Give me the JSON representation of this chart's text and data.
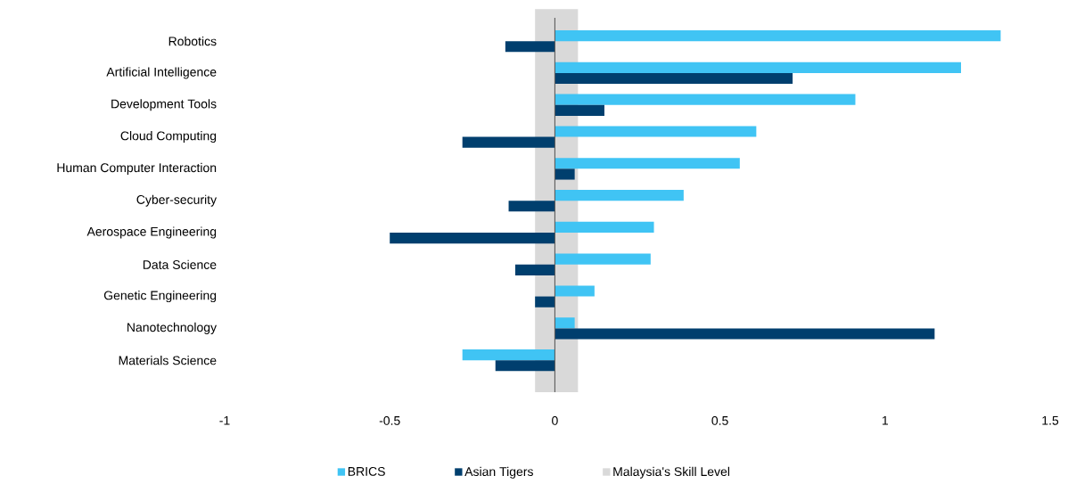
{
  "chart_data": {
    "type": "bar",
    "orientation": "horizontal",
    "categories": [
      "Robotics",
      "Artificial Intelligence",
      "Development Tools",
      "Cloud Computing",
      "Human Computer Interaction",
      "Cyber-security",
      "Aerospace Engineering",
      "Data Science",
      "Genetic Engineering",
      "Nanotechnology",
      "Materials Science"
    ],
    "series": [
      {
        "name": "BRICS",
        "color": "#40c4f4",
        "values": [
          1.35,
          1.23,
          0.91,
          0.61,
          0.56,
          0.39,
          0.3,
          0.29,
          0.12,
          0.06,
          -0.28
        ]
      },
      {
        "name": "Asian Tigers",
        "color": "#003f6e",
        "values": [
          -0.15,
          0.72,
          0.15,
          -0.28,
          0.06,
          -0.14,
          -0.5,
          -0.12,
          -0.06,
          1.15,
          -0.18
        ]
      }
    ],
    "bands": [
      {
        "axis": "x",
        "from": -0.06,
        "to": 0.07,
        "label": "Malaysia's Skill Level",
        "color": "#d9d9d9"
      }
    ],
    "xlim": [
      -1,
      1.5
    ],
    "xticks": [
      -1,
      -0.5,
      0,
      0.5,
      1,
      1.5
    ],
    "ref_lines": [
      {
        "axis": "x",
        "value": 0,
        "color": "#595959"
      }
    ],
    "legend": "bottom"
  }
}
